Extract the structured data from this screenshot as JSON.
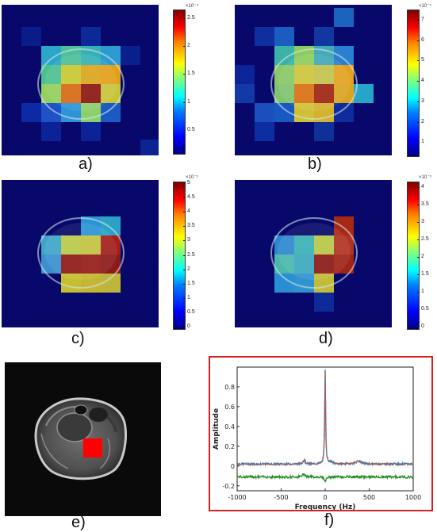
{
  "panels": [
    {
      "caption": "a)",
      "exponent": "×10⁻⁴",
      "ticks": [
        "2.5",
        "2",
        "1.5",
        "1",
        "0.5"
      ]
    },
    {
      "caption": "b)",
      "exponent": "×10⁻⁵",
      "ticks": [
        "7",
        "6",
        "5",
        "4",
        "3",
        "2",
        "1"
      ]
    },
    {
      "caption": "c)",
      "exponent": "×10⁻⁵",
      "ticks": [
        "5",
        "4.5",
        "4",
        "3.5",
        "3",
        "2.5",
        "2",
        "1.5",
        "1",
        "0.5",
        "0"
      ]
    },
    {
      "caption": "d)",
      "exponent": "×10⁻⁵",
      "ticks": [
        "4",
        "3.5",
        "3",
        "2.5",
        "2",
        "1.5",
        "1",
        "0.5",
        "0"
      ]
    }
  ],
  "mri": {
    "caption": "e)"
  },
  "spectrum": {
    "caption": "f)",
    "xlabel": "Frequency (Hz)",
    "ylabel": "Amplitude",
    "xticks": [
      "-1000",
      "-500",
      "0",
      "500",
      "1000"
    ],
    "yticks": [
      "0.8",
      "0.6",
      "0.4",
      "0.2",
      "0",
      "-0.2"
    ],
    "xlim": [
      -1000,
      1000
    ],
    "ylim": [
      -0.25,
      1.0
    ],
    "colors": {
      "blue": "#2f7ec2",
      "red_dashed": "#d9542a",
      "green": "#1f8a1f",
      "frame": "#d62021"
    }
  }
}
